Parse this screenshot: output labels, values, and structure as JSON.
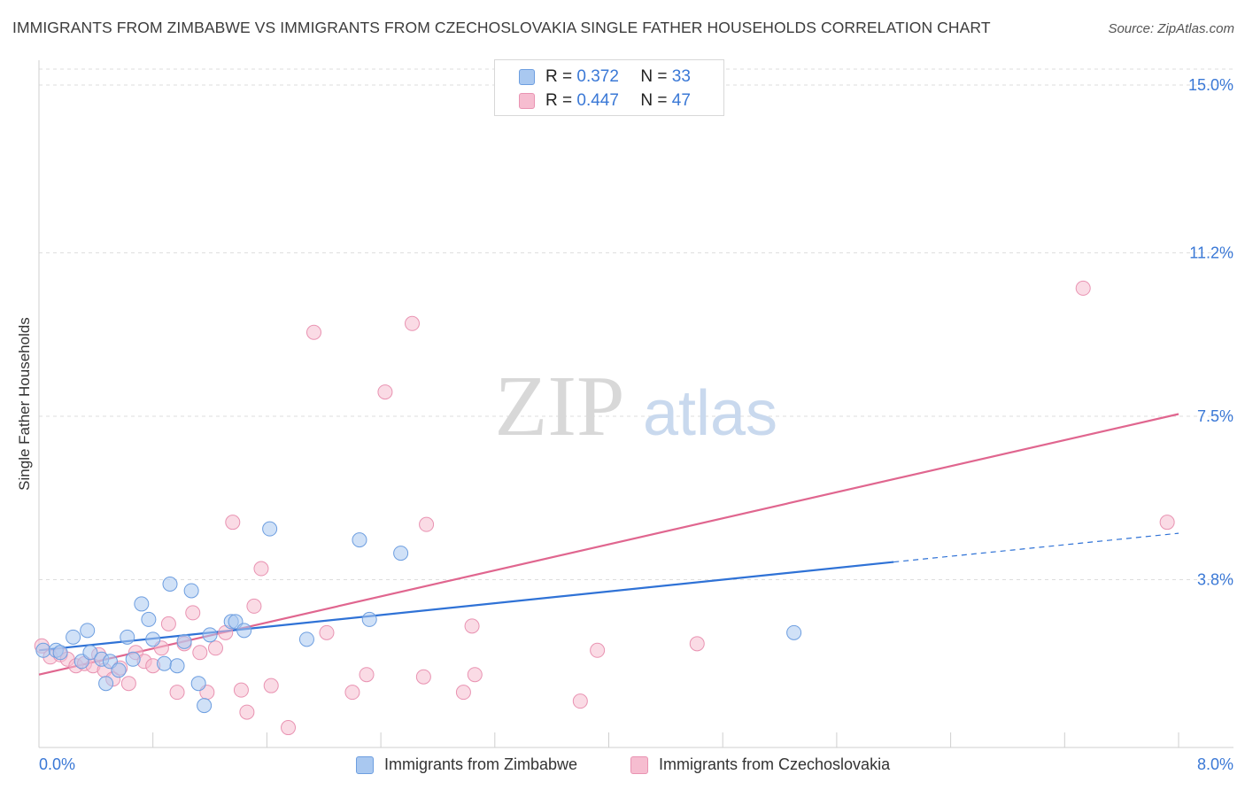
{
  "title": "IMMIGRANTS FROM ZIMBABWE VS IMMIGRANTS FROM CZECHOSLOVAKIA SINGLE FATHER HOUSEHOLDS CORRELATION CHART",
  "source": "Source: ZipAtlas.com",
  "watermark": {
    "zip": "ZIP",
    "atlas": "atlas"
  },
  "legend": {
    "zimbabwe": {
      "r_label": "R =",
      "r_value": "0.372",
      "n_label": "N =",
      "n_value": "33"
    },
    "czech": {
      "r_label": "R =",
      "r_value": "0.447",
      "n_label": "N =",
      "n_value": "47"
    }
  },
  "colors": {
    "blue_fill": "#a9c8f0",
    "blue_stroke": "#6d9ee0",
    "blue_line": "#2f72d6",
    "pink_fill": "#f6bdd0",
    "pink_stroke": "#e993b2",
    "pink_line": "#e0668f",
    "tick_label": "#3a78d6",
    "grid": "#dedede"
  },
  "chart_data": {
    "type": "scatter",
    "title": "IMMIGRANTS FROM ZIMBABWE VS IMMIGRANTS FROM CZECHOSLOVAKIA SINGLE FATHER HOUSEHOLDS CORRELATION CHART",
    "xlabel": "",
    "ylabel": "Single Father Households",
    "xlim": [
      0,
      8.0
    ],
    "ylim": [
      0,
      15.0
    ],
    "x_tick_labels": {
      "min": "0.0%",
      "max": "8.0%"
    },
    "y_ticks": [
      3.8,
      7.5,
      11.2,
      15.0
    ],
    "y_tick_labels": [
      "3.8%",
      "7.5%",
      "11.2%",
      "15.0%"
    ],
    "series": [
      {
        "name": "Immigrants from Zimbabwe",
        "color": "blue",
        "r": 0.372,
        "n": 33,
        "points": [
          [
            0.03,
            2.2
          ],
          [
            0.12,
            2.2
          ],
          [
            0.15,
            2.15
          ],
          [
            0.24,
            2.5
          ],
          [
            0.3,
            1.95
          ],
          [
            0.34,
            2.65
          ],
          [
            0.36,
            2.15
          ],
          [
            0.44,
            2.0
          ],
          [
            0.47,
            1.45
          ],
          [
            0.5,
            1.95
          ],
          [
            0.56,
            1.75
          ],
          [
            0.62,
            2.5
          ],
          [
            0.66,
            2.0
          ],
          [
            0.72,
            3.25
          ],
          [
            0.77,
            2.9
          ],
          [
            0.8,
            2.45
          ],
          [
            0.88,
            1.9
          ],
          [
            0.92,
            3.7
          ],
          [
            0.97,
            1.85
          ],
          [
            1.02,
            2.4
          ],
          [
            1.07,
            3.55
          ],
          [
            1.12,
            1.45
          ],
          [
            1.16,
            0.95
          ],
          [
            1.2,
            2.55
          ],
          [
            1.35,
            2.85
          ],
          [
            1.38,
            2.85
          ],
          [
            1.44,
            2.65
          ],
          [
            1.62,
            4.95
          ],
          [
            1.88,
            2.45
          ],
          [
            2.25,
            4.7
          ],
          [
            2.32,
            2.9
          ],
          [
            2.54,
            4.4
          ],
          [
            5.3,
            2.6
          ]
        ],
        "trend": {
          "x1": 0.0,
          "y1": 2.2,
          "x2": 6.0,
          "y2": 4.2,
          "dash_to_x": 8.0,
          "dash_to_y": 4.85
        }
      },
      {
        "name": "Immigrants from Czechoslovakia",
        "color": "pink",
        "r": 0.447,
        "n": 47,
        "points": [
          [
            0.02,
            2.3
          ],
          [
            0.08,
            2.05
          ],
          [
            0.15,
            2.1
          ],
          [
            0.2,
            2.0
          ],
          [
            0.26,
            1.85
          ],
          [
            0.32,
            1.9
          ],
          [
            0.38,
            1.85
          ],
          [
            0.42,
            2.1
          ],
          [
            0.46,
            1.75
          ],
          [
            0.52,
            1.55
          ],
          [
            0.57,
            1.8
          ],
          [
            0.63,
            1.45
          ],
          [
            0.68,
            2.15
          ],
          [
            0.74,
            1.95
          ],
          [
            0.8,
            1.85
          ],
          [
            0.86,
            2.25
          ],
          [
            0.91,
            2.8
          ],
          [
            0.97,
            1.25
          ],
          [
            1.02,
            2.35
          ],
          [
            1.08,
            3.05
          ],
          [
            1.13,
            2.15
          ],
          [
            1.18,
            1.25
          ],
          [
            1.24,
            2.25
          ],
          [
            1.31,
            2.6
          ],
          [
            1.36,
            5.1
          ],
          [
            1.42,
            1.3
          ],
          [
            1.46,
            0.8
          ],
          [
            1.51,
            3.2
          ],
          [
            1.56,
            4.05
          ],
          [
            1.63,
            1.4
          ],
          [
            1.75,
            0.45
          ],
          [
            1.93,
            9.4
          ],
          [
            2.02,
            2.6
          ],
          [
            2.2,
            1.25
          ],
          [
            2.3,
            1.65
          ],
          [
            2.43,
            8.05
          ],
          [
            2.62,
            9.6
          ],
          [
            2.7,
            1.6
          ],
          [
            2.72,
            5.05
          ],
          [
            2.98,
            1.25
          ],
          [
            3.04,
            2.75
          ],
          [
            3.06,
            1.65
          ],
          [
            3.8,
            1.05
          ],
          [
            3.92,
            2.2
          ],
          [
            4.62,
            2.35
          ],
          [
            7.33,
            10.4
          ],
          [
            7.92,
            5.1
          ]
        ],
        "trend": {
          "x1": 0.0,
          "y1": 1.65,
          "x2": 8.0,
          "y2": 7.55
        }
      }
    ],
    "legend": {
      "position": "top-center",
      "entries": [
        "Immigrants from Zimbabwe",
        "Immigrants from Czechoslovakia"
      ]
    }
  }
}
